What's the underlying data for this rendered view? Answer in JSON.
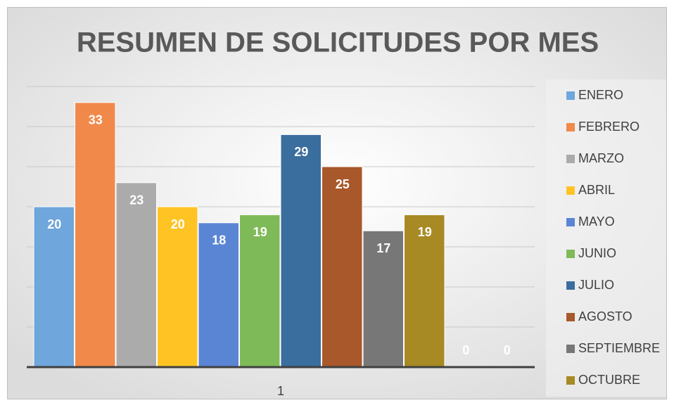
{
  "chart_data": {
    "type": "bar",
    "title": "RESUMEN DE SOLICITUDES POR MES",
    "categories": [
      "1"
    ],
    "series": [
      {
        "name": "ENERO",
        "color": "#6fa6dc",
        "values": [
          20
        ]
      },
      {
        "name": "FEBRERO",
        "color": "#f0894a",
        "values": [
          33
        ]
      },
      {
        "name": "MARZO",
        "color": "#ababab",
        "values": [
          23
        ]
      },
      {
        "name": "ABRIL",
        "color": "#ffc424",
        "values": [
          20
        ]
      },
      {
        "name": "MAYO",
        "color": "#5a85d4",
        "values": [
          18
        ]
      },
      {
        "name": "JUNIO",
        "color": "#7fba58",
        "values": [
          19
        ]
      },
      {
        "name": "JULIO",
        "color": "#3a6e9e",
        "values": [
          29
        ]
      },
      {
        "name": "AGOSTO",
        "color": "#a8582a",
        "values": [
          25
        ]
      },
      {
        "name": "SEPTIEMBRE",
        "color": "#777777",
        "values": [
          17
        ]
      },
      {
        "name": "OCTUBRE",
        "color": "#a88a24",
        "values": [
          19
        ]
      },
      {
        "color": "#2c4f86",
        "values": [
          0
        ]
      },
      {
        "color": "#4e7a33",
        "values": [
          0
        ]
      }
    ],
    "ylim": [
      0,
      35
    ],
    "yticks": [
      0,
      5,
      10,
      15,
      20,
      25,
      30,
      35
    ],
    "grid": true,
    "legend": "right"
  }
}
